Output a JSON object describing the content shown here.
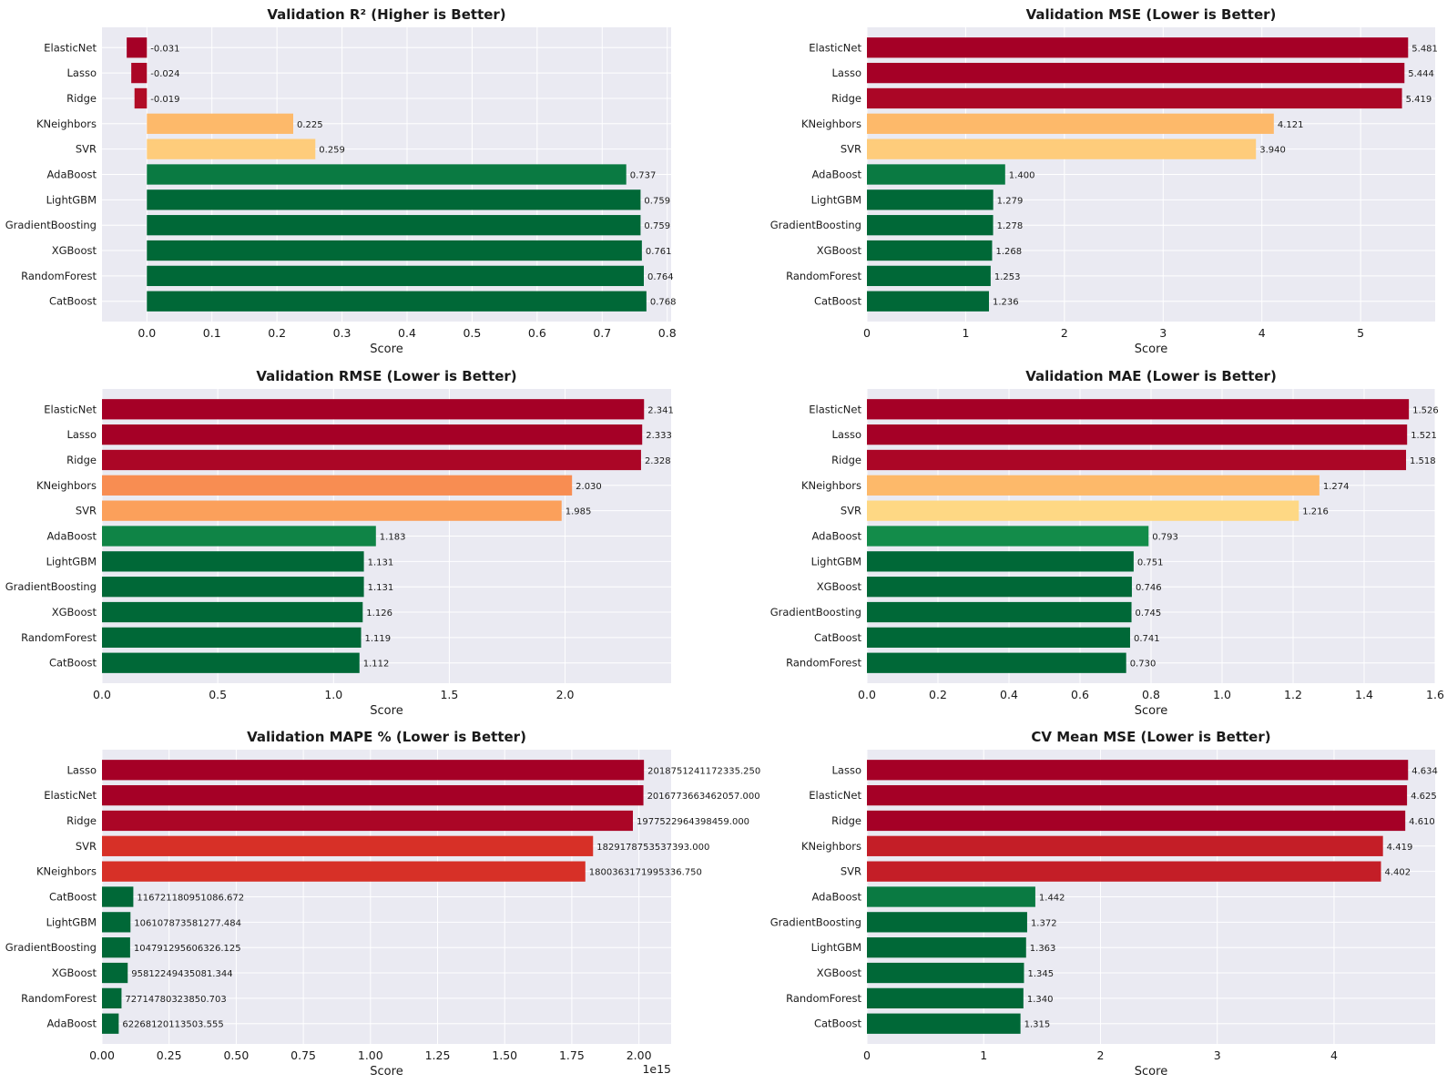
{
  "chart_data": [
    {
      "type": "bar",
      "orientation": "horizontal",
      "title": "Validation R² (Higher is Better)",
      "xlabel": "Score",
      "categories": [
        "ElasticNet",
        "Lasso",
        "Ridge",
        "KNeighbors",
        "SVR",
        "AdaBoost",
        "LightGBM",
        "GradientBoosting",
        "XGBoost",
        "RandomForest",
        "CatBoost"
      ],
      "values": [
        -0.031,
        -0.024,
        -0.019,
        0.225,
        0.259,
        0.737,
        0.759,
        0.759,
        0.761,
        0.764,
        0.768
      ],
      "value_labels": [
        "-0.031",
        "-0.024",
        "-0.019",
        "0.225",
        "0.259",
        "0.737",
        "0.759",
        "0.759",
        "0.761",
        "0.764",
        "0.768"
      ],
      "colors": [
        "#a50026",
        "#ab0626",
        "#b10c26",
        "#fdb96a",
        "#fecc7b",
        "#0a7a42",
        "#006837",
        "#006837",
        "#006837",
        "#006837",
        "#006837"
      ],
      "xlim": [
        -0.069,
        0.806
      ],
      "xticks": [
        0.0,
        0.1,
        0.2,
        0.3,
        0.4,
        0.5,
        0.6,
        0.7,
        0.8
      ],
      "xtick_labels": [
        "0.0",
        "0.1",
        "0.2",
        "0.3",
        "0.4",
        "0.5",
        "0.6",
        "0.7",
        "0.8"
      ],
      "grid": true
    },
    {
      "type": "bar",
      "orientation": "horizontal",
      "title": "Validation MSE (Lower is Better)",
      "xlabel": "Score",
      "categories": [
        "ElasticNet",
        "Lasso",
        "Ridge",
        "KNeighbors",
        "SVR",
        "AdaBoost",
        "LightGBM",
        "GradientBoosting",
        "XGBoost",
        "RandomForest",
        "CatBoost"
      ],
      "values": [
        5.481,
        5.444,
        5.419,
        4.121,
        3.94,
        1.4,
        1.279,
        1.278,
        1.268,
        1.253,
        1.236
      ],
      "value_labels": [
        "5.481",
        "5.444",
        "5.419",
        "4.121",
        "3.940",
        "1.400",
        "1.279",
        "1.278",
        "1.268",
        "1.253",
        "1.236"
      ],
      "colors": [
        "#a50026",
        "#a50026",
        "#ab0626",
        "#fdb96a",
        "#fecc7b",
        "#0a7a42",
        "#006837",
        "#006837",
        "#006837",
        "#006837",
        "#006837"
      ],
      "xlim": [
        0,
        5.755
      ],
      "xticks": [
        0,
        1,
        2,
        3,
        4,
        5
      ],
      "xtick_labels": [
        "0",
        "1",
        "2",
        "3",
        "4",
        "5"
      ],
      "grid": true
    },
    {
      "type": "bar",
      "orientation": "horizontal",
      "title": "Validation RMSE (Lower is Better)",
      "xlabel": "Score",
      "categories": [
        "ElasticNet",
        "Lasso",
        "Ridge",
        "KNeighbors",
        "SVR",
        "AdaBoost",
        "LightGBM",
        "GradientBoosting",
        "XGBoost",
        "RandomForest",
        "CatBoost"
      ],
      "values": [
        2.341,
        2.333,
        2.328,
        2.03,
        1.985,
        1.183,
        1.131,
        1.131,
        1.126,
        1.119,
        1.112
      ],
      "value_labels": [
        "2.341",
        "2.333",
        "2.328",
        "2.030",
        "1.985",
        "1.183",
        "1.131",
        "1.131",
        "1.126",
        "1.119",
        "1.112"
      ],
      "colors": [
        "#a50026",
        "#a50026",
        "#ab0626",
        "#f88d52",
        "#fba05b",
        "#0f8446",
        "#006837",
        "#006837",
        "#006837",
        "#006837",
        "#006837"
      ],
      "xlim": [
        0,
        2.458
      ],
      "xticks": [
        0.0,
        0.5,
        1.0,
        1.5,
        2.0
      ],
      "xtick_labels": [
        "0.0",
        "0.5",
        "1.0",
        "1.5",
        "2.0"
      ],
      "grid": true
    },
    {
      "type": "bar",
      "orientation": "horizontal",
      "title": "Validation MAE (Lower is Better)",
      "xlabel": "Score",
      "categories": [
        "ElasticNet",
        "Lasso",
        "Ridge",
        "KNeighbors",
        "SVR",
        "AdaBoost",
        "LightGBM",
        "XGBoost",
        "GradientBoosting",
        "CatBoost",
        "RandomForest"
      ],
      "values": [
        1.526,
        1.521,
        1.518,
        1.274,
        1.216,
        0.793,
        0.751,
        0.746,
        0.745,
        0.741,
        0.73
      ],
      "value_labels": [
        "1.526",
        "1.521",
        "1.518",
        "1.274",
        "1.216",
        "0.793",
        "0.751",
        "0.746",
        "0.745",
        "0.741",
        "0.730"
      ],
      "colors": [
        "#a50026",
        "#a50026",
        "#ab0626",
        "#fdb96a",
        "#fed884",
        "#138c4a",
        "#006837",
        "#006837",
        "#006837",
        "#006837",
        "#006837"
      ],
      "xlim": [
        0,
        1.6
      ],
      "xticks": [
        0.0,
        0.2,
        0.4,
        0.6,
        0.8,
        1.0,
        1.2,
        1.4,
        1.6
      ],
      "xtick_labels": [
        "0.0",
        "0.2",
        "0.4",
        "0.6",
        "0.8",
        "1.0",
        "1.2",
        "1.4",
        "1.6"
      ],
      "grid": true
    },
    {
      "type": "bar",
      "orientation": "horizontal",
      "title": "Validation MAPE % (Lower is Better)",
      "xlabel": "Score",
      "axis_offset_label": "1e15",
      "categories": [
        "Lasso",
        "ElasticNet",
        "Ridge",
        "SVR",
        "KNeighbors",
        "CatBoost",
        "LightGBM",
        "GradientBoosting",
        "XGBoost",
        "RandomForest",
        "AdaBoost"
      ],
      "values": [
        2018751241172335.2,
        2016773663462057.0,
        1977522964398459.0,
        1829178753537393.0,
        1800363171995336.8,
        116721180951086.67,
        106107873581277.48,
        104791295606326.12,
        95812249435081.34,
        72714780323850.7,
        62268120113503.555
      ],
      "value_labels": [
        "2018751241172335.250",
        "2016773663462057.000",
        "1977522964398459.000",
        "1829178753537393.000",
        "1800363171995336.750",
        "116721180951086.672",
        "106107873581277.484",
        "104791295606326.125",
        "95812249435081.344",
        "72714780323850.703",
        "62268120113503.555"
      ],
      "colors": [
        "#a50026",
        "#a50026",
        "#ab0626",
        "#d73027",
        "#d73027",
        "#006837",
        "#006837",
        "#006837",
        "#006837",
        "#006837",
        "#006837"
      ],
      "xlim": [
        0,
        2120000000000000.0
      ],
      "xticks": [
        0,
        250000000000000.0,
        500000000000000.0,
        750000000000000.0,
        1000000000000000.0,
        1250000000000000.0,
        1500000000000000.0,
        1750000000000000.0,
        2000000000000000.0
      ],
      "xtick_labels": [
        "0.00",
        "0.25",
        "0.50",
        "0.75",
        "1.00",
        "1.25",
        "1.50",
        "1.75",
        "2.00"
      ],
      "grid": true
    },
    {
      "type": "bar",
      "orientation": "horizontal",
      "title": "CV Mean MSE (Lower is Better)",
      "xlabel": "Score",
      "categories": [
        "Lasso",
        "ElasticNet",
        "Ridge",
        "KNeighbors",
        "SVR",
        "AdaBoost",
        "GradientBoosting",
        "LightGBM",
        "XGBoost",
        "RandomForest",
        "CatBoost"
      ],
      "values": [
        4.634,
        4.625,
        4.61,
        4.419,
        4.402,
        1.442,
        1.372,
        1.363,
        1.345,
        1.34,
        1.315
      ],
      "value_labels": [
        "4.634",
        "4.625",
        "4.610",
        "4.419",
        "4.402",
        "1.442",
        "1.372",
        "1.363",
        "1.345",
        "1.340",
        "1.315"
      ],
      "colors": [
        "#a50026",
        "#a50026",
        "#a50026",
        "#c41e27",
        "#c41e27",
        "#0a7a42",
        "#006837",
        "#006837",
        "#006837",
        "#006837",
        "#006837"
      ],
      "xlim": [
        0,
        4.866
      ],
      "xticks": [
        0,
        1,
        2,
        3,
        4
      ],
      "xtick_labels": [
        "0",
        "1",
        "2",
        "3",
        "4"
      ],
      "grid": true
    }
  ]
}
